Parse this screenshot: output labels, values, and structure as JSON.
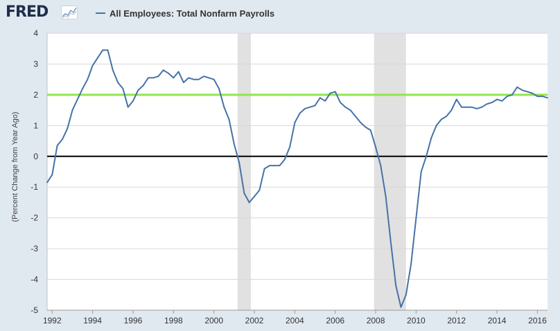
{
  "header": {
    "logo_text": "FRED",
    "logo_icon": "line-chart-icon",
    "legend_label": "All Employees: Total Nonfarm Payrolls"
  },
  "colors": {
    "series": "#4572a7",
    "reference_line": "#91e54d",
    "zero_line": "#000000",
    "recession": "#e1e1e1",
    "background": "#e1e9f0",
    "plot": "#ffffff"
  },
  "chart_data": {
    "type": "line",
    "title": "",
    "xlabel": "",
    "ylabel": "(Percent Change from Year Ago)",
    "xlim": [
      1991.75,
      2016.5
    ],
    "ylim": [
      -5,
      4
    ],
    "y_ticks": [
      -5,
      -4,
      -3,
      -2,
      -1,
      0,
      1,
      2,
      3,
      4
    ],
    "x_ticks": [
      1992,
      1994,
      1996,
      1998,
      2000,
      2002,
      2004,
      2006,
      2008,
      2010,
      2012,
      2014,
      2016
    ],
    "grid": true,
    "legend": "top",
    "reference_lines": [
      {
        "y": 2.0,
        "color": "#91e54d"
      },
      {
        "y": 0,
        "color": "#000000"
      }
    ],
    "recessions": [
      [
        2001.17,
        2001.83
      ],
      [
        2007.92,
        2009.5
      ]
    ],
    "series": [
      {
        "name": "All Employees: Total Nonfarm Payrolls",
        "color": "#4572a7",
        "x": [
          1991.75,
          1992.0,
          1992.25,
          1992.5,
          1992.75,
          1993.0,
          1993.25,
          1993.5,
          1993.75,
          1994.0,
          1994.25,
          1994.5,
          1994.75,
          1995.0,
          1995.25,
          1995.5,
          1995.75,
          1996.0,
          1996.25,
          1996.5,
          1996.75,
          1997.0,
          1997.25,
          1997.5,
          1997.75,
          1998.0,
          1998.25,
          1998.5,
          1998.75,
          1999.0,
          1999.25,
          1999.5,
          1999.75,
          2000.0,
          2000.25,
          2000.5,
          2000.75,
          2001.0,
          2001.25,
          2001.5,
          2001.75,
          2002.0,
          2002.25,
          2002.5,
          2002.75,
          2003.0,
          2003.25,
          2003.5,
          2003.75,
          2004.0,
          2004.25,
          2004.5,
          2004.75,
          2005.0,
          2005.25,
          2005.5,
          2005.75,
          2006.0,
          2006.25,
          2006.5,
          2006.75,
          2007.0,
          2007.25,
          2007.5,
          2007.75,
          2008.0,
          2008.25,
          2008.5,
          2008.75,
          2009.0,
          2009.25,
          2009.5,
          2009.75,
          2010.0,
          2010.25,
          2010.5,
          2010.75,
          2011.0,
          2011.25,
          2011.5,
          2011.75,
          2012.0,
          2012.25,
          2012.5,
          2012.75,
          2013.0,
          2013.25,
          2013.5,
          2013.75,
          2014.0,
          2014.25,
          2014.5,
          2014.75,
          2015.0,
          2015.25,
          2015.5,
          2015.75,
          2016.0,
          2016.25,
          2016.5
        ],
        "y": [
          -0.85,
          -0.6,
          0.35,
          0.55,
          0.9,
          1.5,
          1.85,
          2.2,
          2.5,
          2.95,
          3.2,
          3.45,
          3.45,
          2.8,
          2.4,
          2.2,
          1.6,
          1.8,
          2.15,
          2.3,
          2.55,
          2.55,
          2.6,
          2.8,
          2.7,
          2.55,
          2.75,
          2.4,
          2.55,
          2.5,
          2.5,
          2.6,
          2.55,
          2.5,
          2.2,
          1.6,
          1.2,
          0.4,
          -0.2,
          -1.2,
          -1.5,
          -1.3,
          -1.1,
          -0.4,
          -0.3,
          -0.3,
          -0.3,
          -0.1,
          0.3,
          1.1,
          1.4,
          1.55,
          1.6,
          1.65,
          1.9,
          1.8,
          2.05,
          2.1,
          1.75,
          1.6,
          1.5,
          1.3,
          1.1,
          0.95,
          0.85,
          0.3,
          -0.3,
          -1.3,
          -2.8,
          -4.2,
          -4.9,
          -4.5,
          -3.5,
          -2.0,
          -0.5,
          0.0,
          0.6,
          1.0,
          1.2,
          1.3,
          1.5,
          1.85,
          1.6,
          1.6,
          1.6,
          1.55,
          1.6,
          1.7,
          1.75,
          1.85,
          1.8,
          1.95,
          2.0,
          2.25,
          2.15,
          2.1,
          2.05,
          1.95,
          1.95,
          1.9
        ]
      }
    ]
  }
}
